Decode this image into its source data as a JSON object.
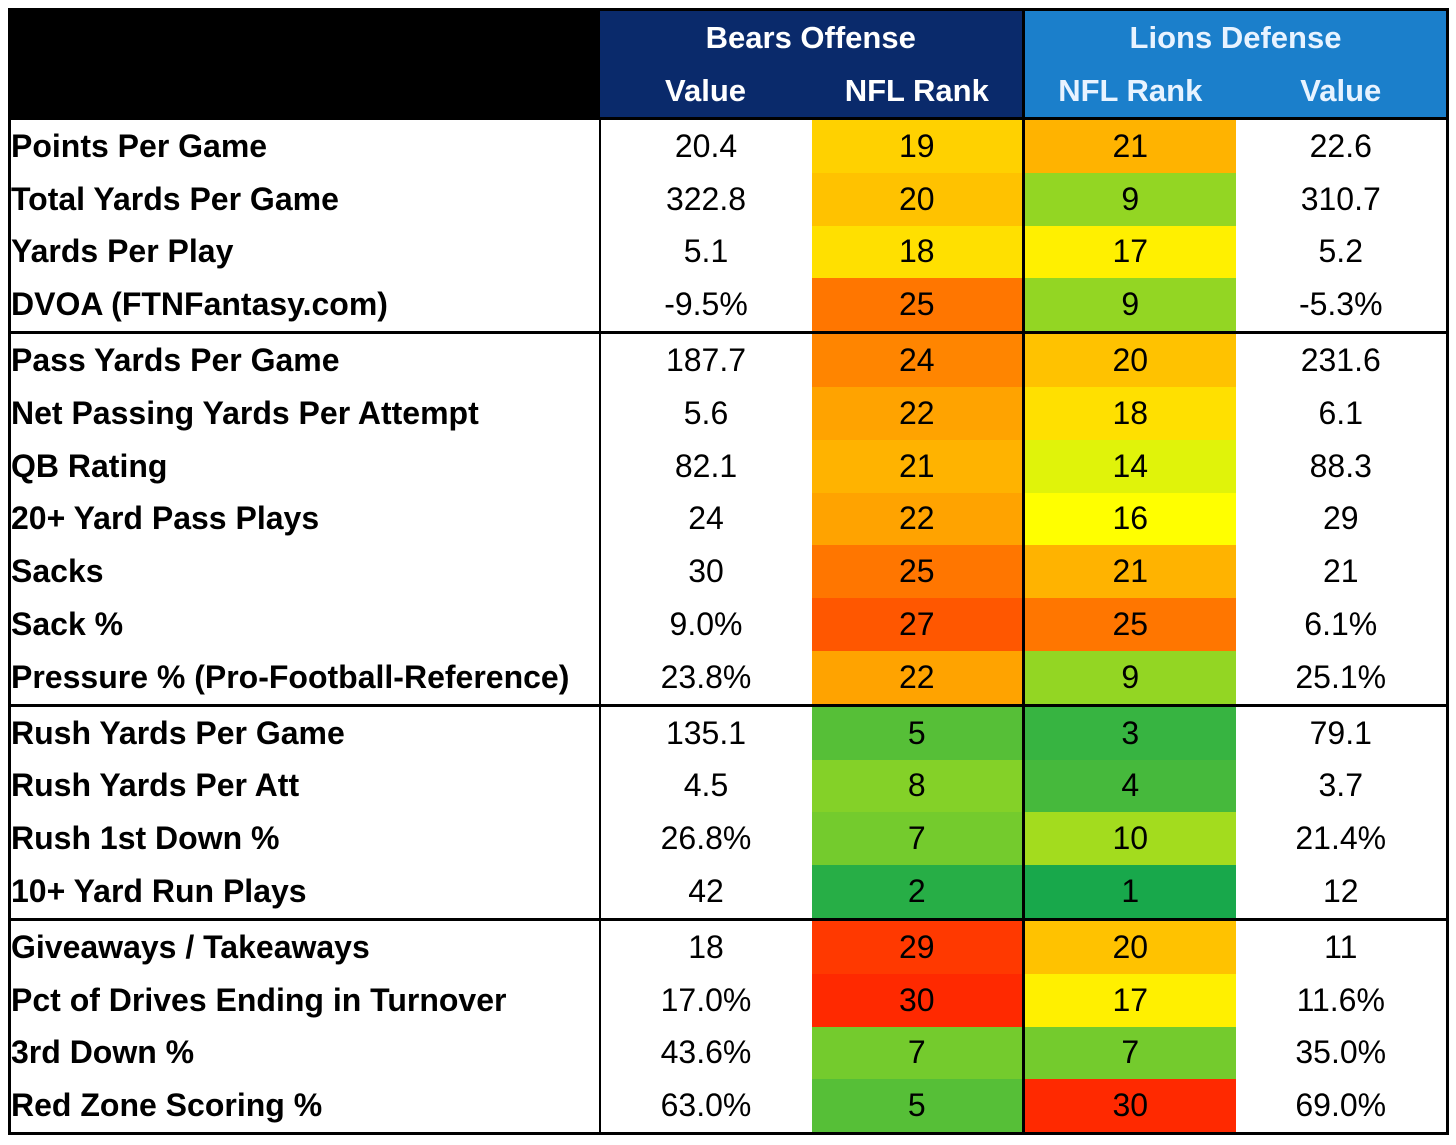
{
  "header": {
    "bears_title": "Bears Offense",
    "lions_title": "Lions Defense",
    "bears_value_label": "Value",
    "bears_rank_label": "NFL Rank",
    "lions_rank_label": "NFL Rank",
    "lions_value_label": "Value"
  },
  "colors": {
    "bears_header": "#0a2a6b",
    "lions_header": "#1b7fcb",
    "rank_scale": [
      "#18a84b",
      "#ffff00",
      "#ff1a00"
    ]
  },
  "rows": [
    {
      "stat": "Points Per Game",
      "bears_value": "20.4",
      "bears_rank": "19",
      "lions_rank": "21",
      "lions_value": "22.6",
      "group_start": true
    },
    {
      "stat": "Total Yards Per Game",
      "bears_value": "322.8",
      "bears_rank": "20",
      "lions_rank": "9",
      "lions_value": "310.7"
    },
    {
      "stat": "Yards Per Play",
      "bears_value": "5.1",
      "bears_rank": "18",
      "lions_rank": "17",
      "lions_value": "5.2"
    },
    {
      "stat": "DVOA (FTNFantasy.com)",
      "bears_value": "-9.5%",
      "bears_rank": "25",
      "lions_rank": "9",
      "lions_value": "-5.3%"
    },
    {
      "stat": "Pass Yards Per Game",
      "bears_value": "187.7",
      "bears_rank": "24",
      "lions_rank": "20",
      "lions_value": "231.6",
      "group_start": true
    },
    {
      "stat": "Net Passing Yards Per Attempt",
      "bears_value": "5.6",
      "bears_rank": "22",
      "lions_rank": "18",
      "lions_value": "6.1"
    },
    {
      "stat": "QB Rating",
      "bears_value": "82.1",
      "bears_rank": "21",
      "lions_rank": "14",
      "lions_value": "88.3"
    },
    {
      "stat": "20+ Yard Pass Plays",
      "bears_value": "24",
      "bears_rank": "22",
      "lions_rank": "16",
      "lions_value": "29"
    },
    {
      "stat": "Sacks",
      "bears_value": "30",
      "bears_rank": "25",
      "lions_rank": "21",
      "lions_value": "21"
    },
    {
      "stat": "Sack %",
      "bears_value": "9.0%",
      "bears_rank": "27",
      "lions_rank": "25",
      "lions_value": "6.1%"
    },
    {
      "stat": "Pressure % (Pro-Football-Reference)",
      "bears_value": "23.8%",
      "bears_rank": "22",
      "lions_rank": "9",
      "lions_value": "25.1%"
    },
    {
      "stat": "Rush Yards Per Game",
      "bears_value": "135.1",
      "bears_rank": "5",
      "lions_rank": "3",
      "lions_value": "79.1",
      "group_start": true
    },
    {
      "stat": "Rush Yards Per Att",
      "bears_value": "4.5",
      "bears_rank": "8",
      "lions_rank": "4",
      "lions_value": "3.7"
    },
    {
      "stat": "Rush 1st Down %",
      "bears_value": "26.8%",
      "bears_rank": "7",
      "lions_rank": "10",
      "lions_value": "21.4%"
    },
    {
      "stat": "10+ Yard Run Plays",
      "bears_value": "42",
      "bears_rank": "2",
      "lions_rank": "1",
      "lions_value": "12"
    },
    {
      "stat": "Giveaways / Takeaways",
      "bears_value": "18",
      "bears_rank": "29",
      "lions_rank": "20",
      "lions_value": "11",
      "group_start": true
    },
    {
      "stat": "Pct of Drives Ending in Turnover",
      "bears_value": "17.0%",
      "bears_rank": "30",
      "lions_rank": "17",
      "lions_value": "11.6%"
    },
    {
      "stat": "3rd Down %",
      "bears_value": "43.6%",
      "bears_rank": "7",
      "lions_rank": "7",
      "lions_value": "35.0%"
    },
    {
      "stat": "Red Zone Scoring %",
      "bears_value": "63.0%",
      "bears_rank": "5",
      "lions_rank": "30",
      "lions_value": "69.0%"
    }
  ]
}
